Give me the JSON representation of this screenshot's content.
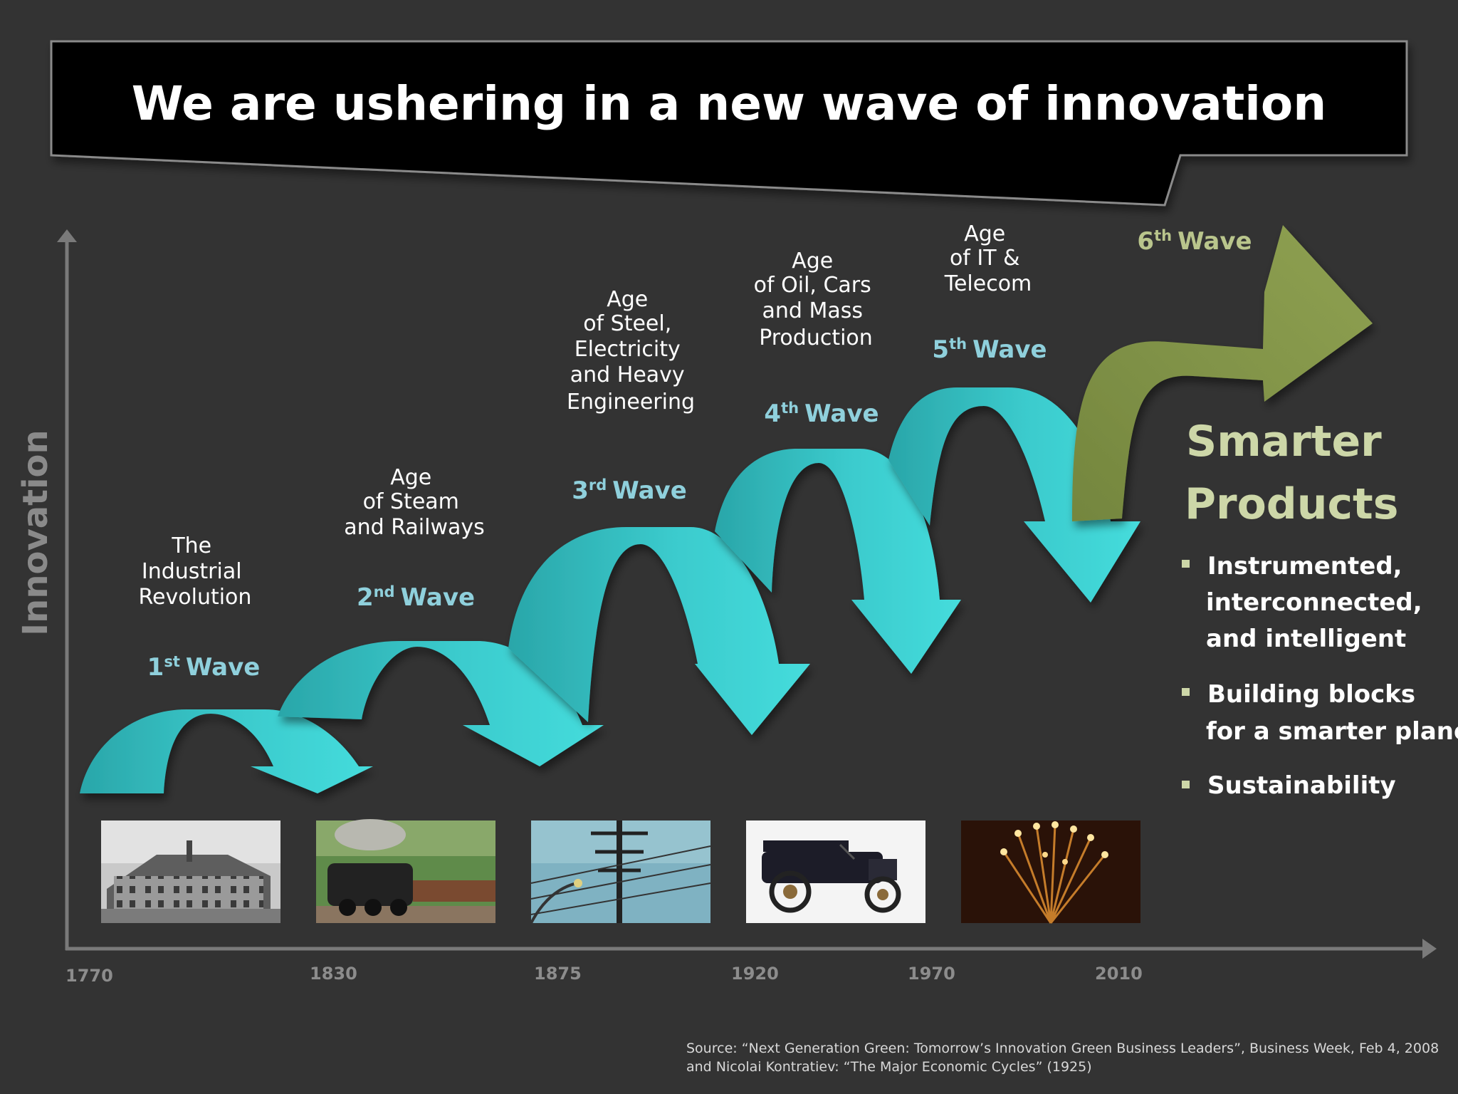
{
  "title": "We are ushering in a new wave of innovation",
  "y_axis_label": "Innovation",
  "years": [
    "1770",
    "1830",
    "1875",
    "1920",
    "1970",
    "2010"
  ],
  "waves": [
    {
      "era": [
        "The",
        "Industrial",
        "Revolution"
      ],
      "num": "1",
      "suffix": "st",
      "word": "Wave"
    },
    {
      "era": [
        "Age",
        "of Steam",
        "and Railways"
      ],
      "num": "2",
      "suffix": "nd",
      "word": "Wave"
    },
    {
      "era": [
        "Age",
        "of Steel,",
        "Electricity",
        "and Heavy",
        "Engineering"
      ],
      "num": "3",
      "suffix": "rd",
      "word": "Wave"
    },
    {
      "era": [
        "Age",
        "of Oil, Cars",
        "and Mass",
        "Production"
      ],
      "num": "4",
      "suffix": "th",
      "word": "Wave"
    },
    {
      "era": [
        "Age",
        "of IT &",
        "Telecom"
      ],
      "num": "5",
      "suffix": "th",
      "word": "Wave"
    },
    {
      "era": [],
      "num": "6",
      "suffix": "th",
      "word": "Wave"
    }
  ],
  "smarter": {
    "line1": "Smarter",
    "line2": "Products",
    "bullets": [
      [
        "Instrumented,",
        "interconnected,",
        "and intelligent"
      ],
      [
        "Building blocks",
        "for a smarter planet"
      ],
      [
        "Sustainability"
      ]
    ]
  },
  "photos": [
    "factory-photo",
    "steam-locomotive-photo",
    "power-lines-photo",
    "model-t-car-photo",
    "fiber-optics-photo"
  ],
  "source": [
    "Source:  “Next Generation Green: Tomorrow’s Innovation Green Business Leaders”, Business Week, Feb 4, 2008",
    "and Nicolai Kontratiev: “The Major Economic Cycles” (1925)"
  ],
  "colors": {
    "background": "#333333",
    "title_box": "#000000",
    "wave_arrow": "#3cc9cb",
    "wave_label": "#8fd0dc",
    "sixth_arrow": "#86984b",
    "sixth_label": "#b9c58c",
    "smarter_text": "#cdd7a8"
  }
}
